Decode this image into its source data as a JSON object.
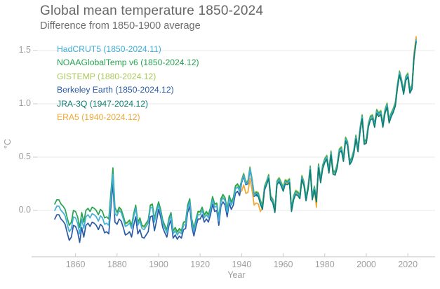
{
  "title": "Global mean temperature 1850-2024",
  "subtitle": "Difference from 1850-1900 average",
  "colors": {
    "background": "#ffffff",
    "grid": "#e9e9e9",
    "axis_line": "#cccccc",
    "tick_mark": "#cccccc",
    "tick_text": "#9e9e9e",
    "title_text": "#676767"
  },
  "chart_data": {
    "type": "line",
    "title": "Global mean temperature 1850-2024",
    "subtitle": "Difference from 1850-1900 average",
    "xlabel": "Year",
    "ylabel": "°C",
    "xlim": [
      1848,
      2026
    ],
    "ylim": [
      -0.45,
      1.75
    ],
    "grid": "horizontal",
    "legend_position": "top-left",
    "x_tick_values": [
      1860,
      1880,
      1900,
      1920,
      1940,
      1960,
      1980,
      2000,
      2020
    ],
    "x_tick_labels": [
      "1860",
      "1880",
      "1900",
      "1920",
      "1940",
      "1960",
      "1980",
      "2000",
      "2020"
    ],
    "y_tick_values": [
      1.5,
      1.0,
      0.5,
      0.0
    ],
    "y_tick_labels": [
      "1.5",
      "1.0",
      "0.5",
      "0.0"
    ],
    "series": [
      {
        "name": "HadCRUT5",
        "label": "HadCRUT5 (1850-2024.11)",
        "color": "#41AFD9",
        "start_year": 1850,
        "values": [
          0.0,
          0.04,
          0.04,
          0.0,
          -0.02,
          -0.05,
          -0.13,
          -0.2,
          -0.17,
          -0.06,
          -0.07,
          -0.12,
          -0.22,
          -0.08,
          -0.17,
          -0.06,
          -0.04,
          -0.07,
          -0.03,
          -0.04,
          -0.06,
          -0.1,
          -0.05,
          -0.07,
          -0.13,
          -0.12,
          -0.14,
          0.1,
          0.34,
          -0.03,
          -0.05,
          0.0,
          -0.02,
          -0.08,
          -0.15,
          -0.14,
          -0.12,
          -0.17,
          -0.06,
          0.02,
          -0.14,
          -0.1,
          -0.17,
          -0.18,
          -0.15,
          -0.12,
          0.02,
          0.03,
          -0.11,
          -0.02,
          0.05,
          -0.02,
          -0.12,
          -0.17,
          -0.21,
          -0.1,
          -0.05,
          -0.22,
          -0.19,
          -0.23,
          -0.2,
          -0.22,
          -0.14,
          -0.13,
          0.02,
          0.08,
          -0.11,
          -0.2,
          -0.11,
          -0.04,
          -0.04,
          0.0,
          -0.07,
          -0.04,
          -0.07,
          0.0,
          0.1,
          0.03,
          0.04,
          -0.1,
          0.08,
          0.12,
          0.09,
          -0.02,
          0.11,
          0.05,
          0.09,
          0.2,
          0.22,
          0.18,
          0.27,
          0.33,
          0.25,
          0.26,
          0.39,
          0.28,
          0.14,
          0.16,
          0.15,
          0.08,
          0.03,
          0.21,
          0.26,
          0.32,
          0.12,
          0.09,
          0.0,
          0.26,
          0.29,
          0.25,
          0.2,
          0.27,
          0.26,
          0.28,
          0.01,
          0.12,
          0.17,
          0.16,
          0.13,
          0.31,
          0.25,
          0.11,
          0.22,
          0.4,
          0.12,
          0.21,
          0.1,
          0.42,
          0.28,
          0.41,
          0.47,
          0.5,
          0.37,
          0.54,
          0.36,
          0.35,
          0.42,
          0.56,
          0.58,
          0.48,
          0.67,
          0.63,
          0.45,
          0.48,
          0.55,
          0.69,
          0.57,
          0.76,
          0.88,
          0.64,
          0.65,
          0.8,
          0.87,
          0.88,
          0.8,
          0.93,
          0.9,
          0.92,
          0.8,
          0.93,
          0.99,
          0.84,
          0.9,
          0.94,
          1.0,
          1.17,
          1.29,
          1.21,
          1.11,
          1.24,
          1.27,
          1.12,
          1.16,
          1.45,
          1.6
        ]
      },
      {
        "name": "NOAAGlobalTemp v6",
        "label": "NOAAGlobalTemp v6 (1850-2024.12)",
        "color": "#27A351",
        "start_year": 1850,
        "values": [
          0.06,
          0.1,
          0.1,
          0.06,
          0.04,
          0.01,
          -0.07,
          -0.14,
          -0.11,
          0.0,
          -0.01,
          -0.06,
          -0.16,
          -0.02,
          -0.11,
          0.0,
          0.02,
          -0.01,
          0.03,
          0.02,
          0.0,
          -0.04,
          0.01,
          -0.01,
          -0.07,
          -0.06,
          -0.08,
          0.16,
          0.4,
          0.03,
          -0.02,
          0.03,
          0.01,
          -0.05,
          -0.12,
          -0.11,
          -0.09,
          -0.14,
          -0.03,
          0.05,
          -0.11,
          -0.07,
          -0.14,
          -0.15,
          -0.12,
          -0.09,
          0.05,
          0.06,
          -0.08,
          0.01,
          0.08,
          0.01,
          -0.09,
          -0.14,
          -0.18,
          -0.07,
          -0.02,
          -0.19,
          -0.16,
          -0.2,
          -0.17,
          -0.19,
          -0.11,
          -0.1,
          0.05,
          0.11,
          -0.08,
          -0.17,
          -0.08,
          -0.01,
          -0.01,
          0.03,
          -0.04,
          -0.01,
          -0.04,
          0.03,
          0.13,
          0.06,
          0.07,
          -0.07,
          0.11,
          0.15,
          0.12,
          0.01,
          0.14,
          0.08,
          0.12,
          0.23,
          0.25,
          0.21,
          0.28,
          0.34,
          0.26,
          0.27,
          0.4,
          0.29,
          0.15,
          0.17,
          0.16,
          0.09,
          0.04,
          0.22,
          0.27,
          0.33,
          0.13,
          0.1,
          0.01,
          0.27,
          0.3,
          0.26,
          0.21,
          0.28,
          0.27,
          0.29,
          0.02,
          0.13,
          0.18,
          0.17,
          0.14,
          0.32,
          0.26,
          0.12,
          0.23,
          0.41,
          0.13,
          0.22,
          0.11,
          0.43,
          0.29,
          0.42,
          0.48,
          0.51,
          0.38,
          0.55,
          0.37,
          0.36,
          0.43,
          0.57,
          0.59,
          0.49,
          0.68,
          0.64,
          0.46,
          0.49,
          0.56,
          0.7,
          0.58,
          0.77,
          0.89,
          0.65,
          0.66,
          0.81,
          0.88,
          0.89,
          0.81,
          0.94,
          0.91,
          0.93,
          0.81,
          0.94,
          1.0,
          0.85,
          0.91,
          0.95,
          1.01,
          1.18,
          1.3,
          1.22,
          1.12,
          1.25,
          1.28,
          1.13,
          1.17,
          1.46,
          1.61
        ]
      },
      {
        "name": "GISTEMP",
        "label": "GISTEMP (1880-2024.12)",
        "color": "#ABC95B",
        "start_year": 1880,
        "values": [
          -0.03,
          0.02,
          0.0,
          -0.06,
          -0.13,
          -0.12,
          -0.1,
          -0.15,
          -0.04,
          0.04,
          -0.12,
          -0.08,
          -0.15,
          -0.16,
          -0.13,
          -0.1,
          0.04,
          0.05,
          -0.09,
          0.0,
          0.07,
          0.0,
          -0.1,
          -0.15,
          -0.19,
          -0.08,
          -0.03,
          -0.2,
          -0.17,
          -0.21,
          -0.18,
          -0.2,
          -0.12,
          -0.11,
          0.04,
          0.1,
          -0.09,
          -0.18,
          -0.09,
          -0.02,
          -0.02,
          0.02,
          -0.05,
          -0.02,
          -0.05,
          0.02,
          0.12,
          0.05,
          0.06,
          -0.08,
          0.1,
          0.14,
          0.11,
          0.0,
          0.13,
          0.07,
          0.11,
          0.22,
          0.24,
          0.2,
          0.29,
          0.35,
          0.27,
          0.28,
          0.41,
          0.3,
          0.16,
          0.18,
          0.17,
          0.1,
          0.05,
          0.23,
          0.28,
          0.34,
          0.14,
          0.11,
          0.02,
          0.28,
          0.31,
          0.27,
          0.22,
          0.29,
          0.28,
          0.3,
          0.03,
          0.14,
          0.19,
          0.18,
          0.15,
          0.33,
          0.27,
          0.13,
          0.24,
          0.42,
          0.14,
          0.23,
          0.12,
          0.44,
          0.3,
          0.43,
          0.49,
          0.52,
          0.39,
          0.56,
          0.38,
          0.37,
          0.44,
          0.58,
          0.6,
          0.5,
          0.69,
          0.65,
          0.47,
          0.5,
          0.57,
          0.71,
          0.59,
          0.78,
          0.9,
          0.66,
          0.67,
          0.82,
          0.89,
          0.9,
          0.82,
          0.95,
          0.92,
          0.94,
          0.82,
          0.95,
          1.01,
          0.86,
          0.92,
          0.96,
          1.02,
          1.19,
          1.31,
          1.23,
          1.13,
          1.26,
          1.29,
          1.14,
          1.18,
          1.47,
          1.62
        ]
      },
      {
        "name": "Berkeley Earth",
        "label": "Berkeley Earth (1850-2024.12)",
        "color": "#2C5BA5",
        "start_year": 1850,
        "values": [
          -0.08,
          -0.04,
          -0.04,
          -0.08,
          -0.1,
          -0.13,
          -0.21,
          -0.28,
          -0.25,
          -0.14,
          -0.15,
          -0.2,
          -0.3,
          -0.16,
          -0.25,
          -0.14,
          -0.12,
          -0.15,
          -0.11,
          -0.12,
          -0.14,
          -0.18,
          -0.13,
          -0.15,
          -0.21,
          -0.2,
          -0.22,
          0.02,
          0.26,
          -0.11,
          -0.13,
          -0.08,
          -0.1,
          -0.16,
          -0.23,
          -0.22,
          -0.2,
          -0.25,
          -0.14,
          -0.06,
          -0.22,
          -0.18,
          -0.25,
          -0.26,
          -0.23,
          -0.2,
          -0.06,
          -0.05,
          -0.19,
          -0.1,
          0.01,
          -0.06,
          -0.16,
          -0.21,
          -0.25,
          -0.14,
          -0.09,
          -0.26,
          -0.23,
          -0.27,
          -0.24,
          -0.26,
          -0.18,
          -0.17,
          -0.02,
          0.04,
          -0.15,
          -0.24,
          -0.15,
          -0.08,
          -0.08,
          -0.04,
          -0.11,
          -0.08,
          -0.11,
          -0.04,
          0.06,
          -0.01,
          0.0,
          -0.14,
          0.04,
          0.08,
          0.05,
          -0.06,
          0.07,
          0.01,
          0.05,
          0.16,
          0.18,
          0.14,
          0.26,
          0.32,
          0.24,
          0.25,
          0.38,
          0.27,
          0.13,
          0.15,
          0.14,
          0.07,
          0.02,
          0.2,
          0.25,
          0.31,
          0.11,
          0.08,
          -0.01,
          0.25,
          0.28,
          0.24,
          0.19,
          0.26,
          0.25,
          0.27,
          0.0,
          0.11,
          0.16,
          0.15,
          0.12,
          0.3,
          0.24,
          0.1,
          0.21,
          0.39,
          0.11,
          0.2,
          0.09,
          0.41,
          0.27,
          0.4,
          0.46,
          0.49,
          0.36,
          0.53,
          0.35,
          0.34,
          0.41,
          0.55,
          0.57,
          0.47,
          0.66,
          0.62,
          0.44,
          0.47,
          0.54,
          0.68,
          0.56,
          0.75,
          0.87,
          0.63,
          0.64,
          0.79,
          0.86,
          0.87,
          0.79,
          0.92,
          0.89,
          0.91,
          0.79,
          0.92,
          0.98,
          0.83,
          0.89,
          0.93,
          0.99,
          1.16,
          1.28,
          1.2,
          1.1,
          1.23,
          1.26,
          1.11,
          1.15,
          1.44,
          1.59
        ]
      },
      {
        "name": "JRA-3Q",
        "label": "JRA-3Q (1947-2024.12)",
        "color": "#0F7E74",
        "start_year": 1947,
        "values": [
          0.14,
          0.13,
          0.06,
          0.01,
          0.19,
          0.24,
          0.3,
          0.1,
          0.07,
          -0.02,
          0.24,
          0.27,
          0.23,
          0.18,
          0.25,
          0.24,
          0.26,
          -0.01,
          0.1,
          0.15,
          0.14,
          0.11,
          0.29,
          0.23,
          0.09,
          0.2,
          0.38,
          0.1,
          0.19,
          0.08,
          0.4,
          0.26,
          0.39,
          0.45,
          0.48,
          0.35,
          0.52,
          0.34,
          0.33,
          0.4,
          0.54,
          0.56,
          0.46,
          0.65,
          0.61,
          0.43,
          0.46,
          0.53,
          0.67,
          0.55,
          0.74,
          0.86,
          0.62,
          0.63,
          0.78,
          0.85,
          0.86,
          0.78,
          0.91,
          0.88,
          0.9,
          0.78,
          0.91,
          0.97,
          0.82,
          0.88,
          0.92,
          0.98,
          1.15,
          1.27,
          1.19,
          1.09,
          1.22,
          1.25,
          1.1,
          1.14,
          1.43,
          1.58
        ]
      },
      {
        "name": "ERA5",
        "label": "ERA5 (1940-2024.12)",
        "color": "#F2A72F",
        "start_year": 1940,
        "values": [
          0.18,
          0.24,
          0.16,
          0.17,
          0.3,
          0.19,
          0.05,
          0.07,
          0.06,
          -0.01,
          0.02,
          0.2,
          0.25,
          0.31,
          0.11,
          0.08,
          -0.01,
          0.25,
          0.28,
          0.24,
          0.19,
          0.26,
          0.25,
          0.27,
          0.0,
          0.11,
          0.16,
          0.15,
          0.12,
          0.3,
          0.24,
          0.1,
          0.21,
          0.39,
          0.11,
          0.2,
          0.03,
          0.41,
          0.27,
          0.4,
          0.46,
          0.49,
          0.36,
          0.53,
          0.35,
          0.34,
          0.41,
          0.55,
          0.57,
          0.47,
          0.66,
          0.62,
          0.44,
          0.47,
          0.54,
          0.68,
          0.56,
          0.75,
          0.87,
          0.63,
          0.64,
          0.79,
          0.86,
          0.87,
          0.79,
          0.92,
          0.89,
          0.91,
          0.79,
          0.92,
          0.98,
          0.83,
          0.89,
          0.93,
          0.99,
          1.16,
          1.28,
          1.2,
          1.1,
          1.23,
          1.26,
          1.11,
          1.15,
          1.48,
          1.63
        ]
      }
    ]
  }
}
